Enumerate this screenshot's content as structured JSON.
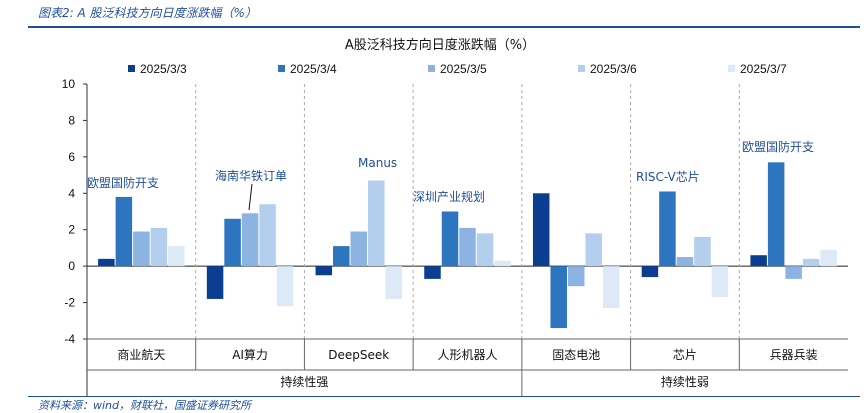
{
  "header": {
    "figure_title": "图表2:  A 股泛科技方向日度涨跌幅（%）"
  },
  "footer": {
    "source": "资料来源：wind，财联社，国盛证券研究所"
  },
  "chart_data": {
    "type": "bar",
    "title": "A股泛科技方向日度涨跌幅（%）",
    "ylim": [
      -4,
      10
    ],
    "yticks": [
      -4,
      -2,
      0,
      2,
      4,
      6,
      8,
      10
    ],
    "categories": [
      "商业航天",
      "AI算力",
      "DeepSeek",
      "人形机器人",
      "固态电池",
      "芯片",
      "兵器兵装"
    ],
    "groups": [
      {
        "label": "持续性强",
        "count": 4
      },
      {
        "label": "持续性弱",
        "count": 3
      }
    ],
    "series": [
      {
        "name": "2025/3/3",
        "color": "#0b3d91",
        "values": [
          0.4,
          -1.8,
          -0.5,
          -0.7,
          4.0,
          -0.6,
          0.6
        ]
      },
      {
        "name": "2025/3/4",
        "color": "#2e75c0",
        "values": [
          3.8,
          2.6,
          1.1,
          3.0,
          -3.4,
          4.1,
          5.7
        ]
      },
      {
        "name": "2025/3/5",
        "color": "#8db3e2",
        "values": [
          1.9,
          2.9,
          1.9,
          2.1,
          -1.1,
          0.5,
          -0.7
        ]
      },
      {
        "name": "2025/3/6",
        "color": "#b4cfee",
        "values": [
          2.1,
          3.4,
          4.7,
          1.8,
          1.8,
          1.6,
          0.4
        ]
      },
      {
        "name": "2025/3/7",
        "color": "#dde9f7",
        "values": [
          1.1,
          -2.2,
          -1.8,
          0.3,
          -2.3,
          -1.7,
          0.9
        ]
      }
    ],
    "annotations": [
      "欧盟国防开支",
      "海南华铁订单",
      "Manus",
      "深圳产业规划",
      "RISC-V芯片",
      "欧盟国防开支"
    ]
  }
}
